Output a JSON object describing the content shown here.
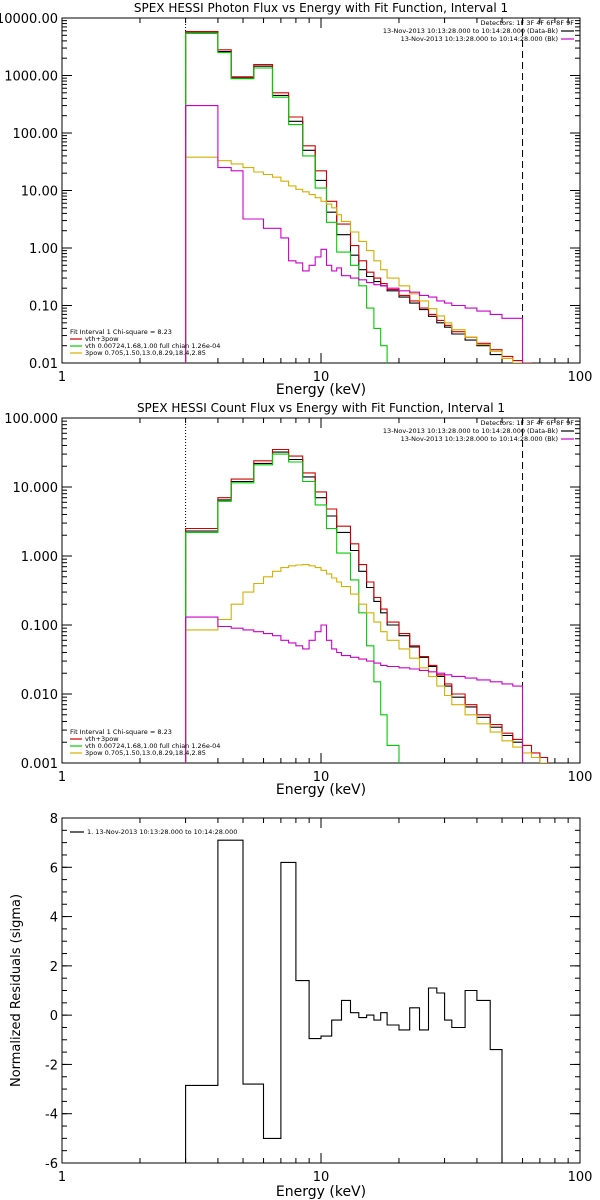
{
  "chart_data": [
    {
      "type": "line",
      "title": "SPEX HESSI Photon Flux vs Energy with Fit Function, Interval 1",
      "xlabel": "Energy (keV)",
      "ylabel": "",
      "xscale": "log",
      "yscale": "log",
      "xlim": [
        1,
        100
      ],
      "ylim": [
        0.01,
        10000
      ],
      "xticks": [
        {
          "v": 1,
          "label": "1"
        },
        {
          "v": 10,
          "label": "10"
        },
        {
          "v": 100,
          "label": "100"
        }
      ],
      "yticks": [
        {
          "v": 10000,
          "label": "10000.00"
        },
        {
          "v": 1000,
          "label": "1000.00"
        },
        {
          "v": 100,
          "label": "100.00"
        },
        {
          "v": 10,
          "label": "10.00"
        },
        {
          "v": 1,
          "label": "1.00"
        },
        {
          "v": 0.1,
          "label": "0.10"
        },
        {
          "v": 0.01,
          "label": "0.01"
        }
      ],
      "vlines": [
        {
          "x": 3,
          "style": "dotted"
        },
        {
          "x": 60,
          "style": "dashed"
        }
      ],
      "legend_top": {
        "position": "top-right",
        "lines": [
          {
            "text": "Detectors: 1F 3F 4F 6F 8F 9F",
            "color": "#000000"
          },
          {
            "text": "13-Nov-2013 10:13:28.000 to 10:14:28.000 (Data-Bk)",
            "color": "#000000"
          },
          {
            "text": "13-Nov-2013 10:13:28.000 to 10:14:28.000 (Bk)",
            "color": "#cc00cc"
          }
        ]
      },
      "legend_bottom": {
        "position": "bottom-left",
        "lines": [
          {
            "text": "Fit Interval 1   Chi-square = 8.23",
            "color": "#000000"
          },
          {
            "text": "vth+3pow",
            "color": "#d00000"
          },
          {
            "text": "vth 0.00724,1.68,1.00  full chian 1.26e-04",
            "color": "#00cc00"
          },
          {
            "text": "3pow 0.705,1.50,13.0,8.29,18.4,2.85",
            "color": "#d4b000"
          }
        ]
      },
      "edges": [
        3,
        3.5,
        4,
        4.5,
        5,
        5.5,
        6,
        6.5,
        7,
        7.5,
        8,
        8.5,
        9,
        9.5,
        10,
        10.5,
        11,
        11.5,
        12,
        13,
        14,
        15,
        16,
        17,
        18,
        20,
        22,
        24,
        26,
        28,
        30,
        32,
        36,
        40,
        45,
        50,
        55,
        60,
        65,
        70,
        75
      ],
      "series": [
        {
          "color": "#000000",
          "values": [
            5500,
            5500,
            2600,
            900,
            900,
            1450,
            1450,
            450,
            450,
            160,
            160,
            50,
            50,
            15,
            15,
            4.2,
            4.2,
            1.7,
            1.7,
            0.75,
            0.42,
            0.32,
            0.26,
            0.22,
            0.18,
            0.14,
            0.11,
            0.085,
            0.065,
            0.05,
            0.042,
            0.032,
            0.025,
            0.02,
            0.014,
            null,
            null,
            null,
            null,
            null
          ]
        },
        {
          "color": "#d00000",
          "values": [
            5800,
            5800,
            2800,
            950,
            950,
            1550,
            1550,
            500,
            500,
            190,
            190,
            60,
            60,
            22,
            22,
            6.5,
            6.5,
            2.6,
            2.6,
            1.1,
            0.6,
            0.38,
            0.3,
            0.24,
            0.19,
            0.15,
            0.12,
            0.09,
            0.07,
            0.055,
            0.045,
            0.035,
            0.028,
            0.022,
            0.017,
            0.013,
            0.011,
            0.01,
            null,
            null
          ]
        },
        {
          "color": "#00cc00",
          "values": [
            5400,
            5400,
            2500,
            880,
            880,
            1350,
            1350,
            420,
            420,
            140,
            140,
            40,
            40,
            11,
            11,
            2.8,
            2.8,
            0.85,
            0.85,
            0.5,
            0.22,
            0.09,
            0.04,
            0.02,
            null,
            null,
            null,
            null,
            null,
            null,
            null,
            null,
            null,
            null,
            null,
            null,
            null,
            null,
            null,
            null
          ]
        },
        {
          "color": "#d4b000",
          "values": [
            38,
            38,
            33,
            29,
            25,
            21,
            19,
            17,
            14.5,
            12,
            10.5,
            9.5,
            8.5,
            7.5,
            6.5,
            5.8,
            5,
            3.8,
            2.9,
            1.9,
            1.3,
            0.9,
            0.6,
            0.42,
            0.3,
            0.22,
            0.16,
            0.12,
            0.088,
            0.066,
            0.05,
            0.038,
            0.028,
            0.021,
            0.016,
            0.012,
            0.01,
            null,
            null,
            null
          ]
        },
        {
          "color": "#cc00cc",
          "values": [
            300,
            300,
            25,
            22,
            3.2,
            3.2,
            2.2,
            2.2,
            1.5,
            0.6,
            0.55,
            0.4,
            0.5,
            0.7,
            0.95,
            0.5,
            0.4,
            0.45,
            0.33,
            0.3,
            0.28,
            0.25,
            0.23,
            0.22,
            0.2,
            0.18,
            0.17,
            0.15,
            0.14,
            0.12,
            0.11,
            0.1,
            0.09,
            0.08,
            0.07,
            0.06,
            0.06,
            null,
            null,
            null
          ]
        }
      ]
    },
    {
      "type": "line",
      "title": "SPEX HESSI Count Flux vs Energy with Fit Function, Interval 1",
      "xlabel": "Energy (keV)",
      "ylabel": "",
      "xscale": "log",
      "yscale": "log",
      "xlim": [
        1,
        100
      ],
      "ylim": [
        0.001,
        100
      ],
      "xticks": [
        {
          "v": 1,
          "label": "1"
        },
        {
          "v": 10,
          "label": "10"
        },
        {
          "v": 100,
          "label": "100"
        }
      ],
      "yticks": [
        {
          "v": 100,
          "label": "100.000"
        },
        {
          "v": 10,
          "label": "10.000"
        },
        {
          "v": 1,
          "label": "1.000"
        },
        {
          "v": 0.1,
          "label": "0.100"
        },
        {
          "v": 0.01,
          "label": "0.010"
        },
        {
          "v": 0.001,
          "label": "0.001"
        }
      ],
      "vlines": [
        {
          "x": 3,
          "style": "dotted"
        },
        {
          "x": 60,
          "style": "dashed"
        }
      ],
      "legend_top": {
        "position": "top-right",
        "lines": [
          {
            "text": "Detectors: 1F 3F 4F 6F 8F 9F",
            "color": "#000000"
          },
          {
            "text": "13-Nov-2013 10:13:28.000 to 10:14:28.000 (Data-Bk)",
            "color": "#000000"
          },
          {
            "text": "13-Nov-2013 10:13:28.000 to 10:14:28.000 (Bk)",
            "color": "#cc00cc"
          }
        ]
      },
      "legend_bottom": {
        "position": "bottom-left",
        "lines": [
          {
            "text": "Fit Interval 1   Chi-square = 8.23",
            "color": "#000000"
          },
          {
            "text": "vth+3pow",
            "color": "#d00000"
          },
          {
            "text": "vth 0.00724,1.68,1.00  full chian 1.26e-04",
            "color": "#00cc00"
          },
          {
            "text": "3pow 0.705,1.50,13.0,8.29,18.4,2.85",
            "color": "#d4b000"
          }
        ]
      },
      "edges": [
        3,
        3.5,
        4,
        4.5,
        5,
        5.5,
        6,
        6.5,
        7,
        7.5,
        8,
        8.5,
        9,
        9.5,
        10,
        10.5,
        11,
        11.5,
        12,
        13,
        14,
        15,
        16,
        17,
        18,
        20,
        22,
        24,
        26,
        28,
        30,
        32,
        36,
        40,
        45,
        50,
        55,
        60,
        65,
        70,
        75
      ],
      "series": [
        {
          "color": "#000000",
          "values": [
            2.3,
            2.3,
            6.5,
            12,
            12,
            22,
            22,
            32,
            32,
            25,
            25,
            14,
            14,
            7,
            7,
            3.8,
            3.8,
            2.2,
            2.2,
            1.2,
            0.6,
            0.35,
            0.22,
            0.15,
            0.1,
            0.07,
            0.048,
            0.034,
            0.025,
            0.018,
            0.013,
            0.009,
            0.0065,
            0.0046,
            0.0033,
            0.0025,
            0.002,
            null,
            null,
            null
          ]
        },
        {
          "color": "#d00000",
          "values": [
            2.5,
            2.5,
            7,
            13,
            13,
            24,
            24,
            35,
            35,
            28,
            28,
            16,
            16,
            8.5,
            8.5,
            4.8,
            4.8,
            2.7,
            2.7,
            1.5,
            0.75,
            0.42,
            0.25,
            0.17,
            0.11,
            0.075,
            0.05,
            0.035,
            0.026,
            0.019,
            0.014,
            0.01,
            0.007,
            0.005,
            0.0036,
            0.0027,
            0.0022,
            0.0018,
            0.0014,
            0.0012
          ]
        },
        {
          "color": "#00cc00",
          "values": [
            2.2,
            2.2,
            6.2,
            11.5,
            11.5,
            21,
            21,
            30,
            30,
            23,
            23,
            12,
            12,
            5.5,
            5.5,
            2.5,
            2.5,
            1.1,
            1.1,
            0.45,
            0.15,
            0.05,
            0.015,
            0.005,
            0.0018,
            null,
            null,
            null,
            null,
            null,
            null,
            null,
            null,
            null,
            null,
            null,
            null,
            null,
            null,
            null
          ]
        },
        {
          "color": "#d4b000",
          "values": [
            0.085,
            0.085,
            0.12,
            0.2,
            0.3,
            0.4,
            0.5,
            0.6,
            0.68,
            0.72,
            0.74,
            0.75,
            0.72,
            0.68,
            0.62,
            0.55,
            0.48,
            0.42,
            0.36,
            0.28,
            0.2,
            0.15,
            0.11,
            0.08,
            0.06,
            0.045,
            0.033,
            0.024,
            0.018,
            0.013,
            0.0095,
            0.007,
            0.005,
            0.0037,
            0.0028,
            0.0021,
            0.0017,
            0.0014,
            0.0012,
            0.001
          ]
        },
        {
          "color": "#cc00cc",
          "values": [
            0.13,
            0.13,
            0.095,
            0.09,
            0.085,
            0.08,
            0.075,
            0.07,
            0.06,
            0.055,
            0.05,
            0.045,
            0.06,
            0.08,
            0.1,
            0.06,
            0.045,
            0.04,
            0.036,
            0.034,
            0.032,
            0.03,
            0.028,
            0.026,
            0.025,
            0.024,
            0.023,
            0.022,
            0.021,
            0.02,
            0.019,
            0.018,
            0.017,
            0.016,
            0.015,
            0.014,
            0.013,
            null,
            null,
            null
          ]
        }
      ]
    },
    {
      "type": "line",
      "title": "",
      "xlabel": "Energy (keV)",
      "ylabel": "Normalized Residuals (sigma)",
      "xscale": "log",
      "yscale": "linear",
      "xlim": [
        1,
        100
      ],
      "ylim": [
        -6,
        8
      ],
      "xticks": [
        {
          "v": 1,
          "label": "1"
        },
        {
          "v": 10,
          "label": "10"
        },
        {
          "v": 100,
          "label": "100"
        }
      ],
      "yticks": [
        {
          "v": 8,
          "label": "8"
        },
        {
          "v": 6,
          "label": "6"
        },
        {
          "v": 4,
          "label": "4"
        },
        {
          "v": 2,
          "label": "2"
        },
        {
          "v": 0,
          "label": "0"
        },
        {
          "v": -2,
          "label": "-2"
        },
        {
          "v": -4,
          "label": "-4"
        },
        {
          "v": -6,
          "label": "-6"
        }
      ],
      "legend_top": {
        "position": "top-left",
        "lines": [
          {
            "text": "1. 13-Nov-2013 10:13:28.000 to 10:14:28.000",
            "color": "#000000"
          }
        ]
      },
      "edges": [
        3,
        4,
        5,
        6,
        7,
        8,
        9,
        10,
        11,
        12,
        13,
        14,
        15,
        16,
        17,
        18,
        20,
        22,
        24,
        26,
        28,
        30,
        32,
        36,
        40,
        45,
        50,
        55,
        60
      ],
      "series": [
        {
          "color": "#000000",
          "values": [
            -2.85,
            7.1,
            -2.8,
            -5.0,
            6.2,
            1.4,
            -0.95,
            -0.85,
            -0.2,
            0.6,
            0.1,
            -0.1,
            0.0,
            -0.2,
            0.1,
            -0.4,
            -0.6,
            0.3,
            -0.6,
            1.1,
            0.9,
            -0.2,
            -0.5,
            1.0,
            0.6,
            -1.4
          ]
        }
      ]
    }
  ]
}
